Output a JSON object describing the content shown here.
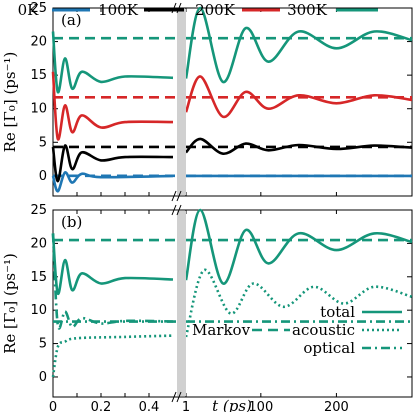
{
  "colors": {
    "0K": "#1f77b4",
    "100K": "#000000",
    "200K": "#d62728",
    "300K": "#15967a"
  },
  "chart_data": [
    {
      "type": "line",
      "panel_label": "(a)",
      "ylabel": "Re [Γ₀] (ps⁻¹)",
      "ylim": [
        -3,
        25
      ],
      "yticks": [
        "0",
        "5",
        "10",
        "15",
        "20",
        "25"
      ],
      "legend": [
        "0K",
        "100K",
        "200K",
        "300K"
      ],
      "legend_placement": "top",
      "series": [
        {
          "name": "0K",
          "markov": 0,
          "early": [
            [
              0,
              0
            ],
            [
              0.02,
              -2.3
            ],
            [
              0.05,
              0.5
            ],
            [
              0.08,
              -1.0
            ],
            [
              0.12,
              0.3
            ],
            [
              0.2,
              -0.2
            ],
            [
              0.5,
              0
            ]
          ],
          "late": [
            [
              1,
              0
            ],
            [
              300,
              0
            ]
          ]
        },
        {
          "name": "100K",
          "markov": 4.3,
          "early": [
            [
              0,
              4.3
            ],
            [
              0.02,
              -0.8
            ],
            [
              0.05,
              4.5
            ],
            [
              0.08,
              1.0
            ],
            [
              0.12,
              3.5
            ],
            [
              0.2,
              2.3
            ],
            [
              0.3,
              2.8
            ],
            [
              0.5,
              2.8
            ]
          ],
          "late": [
            [
              1,
              3.5
            ],
            [
              20,
              5.5
            ],
            [
              50,
              3.3
            ],
            [
              80,
              4.8
            ],
            [
              110,
              3.8
            ],
            [
              150,
              4.6
            ],
            [
              200,
              4.0
            ],
            [
              250,
              4.5
            ],
            [
              300,
              4.2
            ]
          ]
        },
        {
          "name": "200K",
          "markov": 11.7,
          "early": [
            [
              0,
              15.5
            ],
            [
              0.02,
              5.5
            ],
            [
              0.05,
              10.5
            ],
            [
              0.08,
              6.5
            ],
            [
              0.12,
              9.0
            ],
            [
              0.2,
              7.2
            ],
            [
              0.3,
              8.0
            ],
            [
              0.5,
              8.0
            ]
          ],
          "late": [
            [
              1,
              9.5
            ],
            [
              20,
              14.8
            ],
            [
              50,
              8.8
            ],
            [
              80,
              12.5
            ],
            [
              110,
              10.0
            ],
            [
              150,
              12.0
            ],
            [
              200,
              10.8
            ],
            [
              250,
              12.0
            ],
            [
              300,
              11.3
            ]
          ]
        },
        {
          "name": "300K",
          "markov": 20.5,
          "early": [
            [
              0,
              21.5
            ],
            [
              0.02,
              12.5
            ],
            [
              0.05,
              17.5
            ],
            [
              0.08,
              13.0
            ],
            [
              0.12,
              15.5
            ],
            [
              0.2,
              14.0
            ],
            [
              0.3,
              14.8
            ],
            [
              0.5,
              14.6
            ]
          ],
          "late": [
            [
              1,
              14.5
            ],
            [
              20,
              25.0
            ],
            [
              50,
              14.0
            ],
            [
              80,
              22.0
            ],
            [
              110,
              17.0
            ],
            [
              150,
              21.5
            ],
            [
              200,
              19.0
            ],
            [
              250,
              21.5
            ],
            [
              300,
              20.2
            ]
          ]
        }
      ]
    },
    {
      "type": "line",
      "panel_label": "(b)",
      "ylabel": "Re [Γ₀] (ps⁻¹)",
      "xlabel": "t (ps)",
      "ylim": [
        -3,
        25
      ],
      "yticks": [
        "0",
        "5",
        "10",
        "15",
        "20",
        "25"
      ],
      "xticks_left": [
        "0",
        "0.2",
        "0.4"
      ],
      "xticks_right": [
        "1",
        "100",
        "200"
      ],
      "legend_title": "Markov",
      "legend": [
        "total",
        "acoustic",
        "optical"
      ],
      "legend_placement": "bottom-right",
      "series": [
        {
          "name": "total",
          "style": "solid",
          "markov": 20.5,
          "early": [
            [
              0,
              21.5
            ],
            [
              0.02,
              12.5
            ],
            [
              0.05,
              17.5
            ],
            [
              0.08,
              13.0
            ],
            [
              0.12,
              15.5
            ],
            [
              0.2,
              14.0
            ],
            [
              0.3,
              14.8
            ],
            [
              0.5,
              14.6
            ]
          ],
          "late": [
            [
              1,
              14.5
            ],
            [
              20,
              25.0
            ],
            [
              50,
              14.0
            ],
            [
              80,
              22.0
            ],
            [
              110,
              17.0
            ],
            [
              150,
              21.5
            ],
            [
              200,
              19.0
            ],
            [
              250,
              21.5
            ],
            [
              300,
              20.2
            ]
          ]
        },
        {
          "name": "acoustic",
          "style": "dotted",
          "markov": 0,
          "early": [
            [
              0,
              0
            ],
            [
              0.02,
              4.5
            ],
            [
              0.05,
              5.3
            ],
            [
              0.1,
              5.8
            ],
            [
              0.3,
              6.0
            ],
            [
              0.5,
              6.2
            ]
          ],
          "late": [
            [
              1,
              6.0
            ],
            [
              25,
              16.0
            ],
            [
              60,
              9.5
            ],
            [
              90,
              14.0
            ],
            [
              130,
              10.5
            ],
            [
              170,
              13.5
            ],
            [
              210,
              11.0
            ],
            [
              250,
              13.5
            ],
            [
              300,
              12.0
            ]
          ]
        },
        {
          "name": "optical",
          "style": "dashdot",
          "markov": 8.3,
          "early": [
            [
              0,
              21.5
            ],
            [
              0.02,
              7.8
            ],
            [
              0.05,
              9.8
            ],
            [
              0.08,
              7.5
            ],
            [
              0.12,
              8.8
            ],
            [
              0.2,
              8.0
            ],
            [
              0.3,
              8.4
            ],
            [
              0.5,
              8.3
            ]
          ],
          "late": [
            [
              1,
              8.3
            ],
            [
              300,
              8.3
            ]
          ]
        }
      ]
    }
  ]
}
